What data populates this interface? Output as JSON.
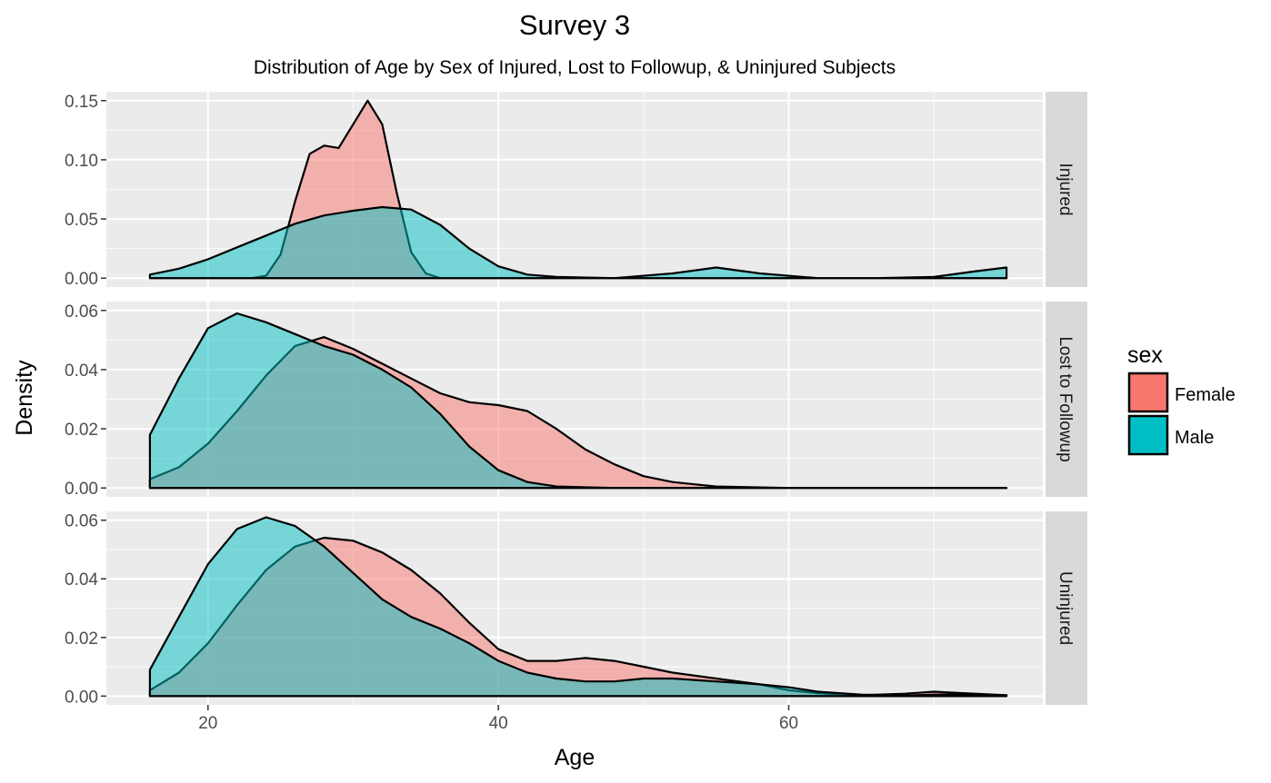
{
  "chart_data": {
    "type": "area",
    "title": "Survey 3",
    "subtitle": "Distribution of Age by Sex of Injured, Lost to Followup, & Uninjured Subjects",
    "xlabel": "Age",
    "ylabel": "Density",
    "xlim": [
      13,
      77.5
    ],
    "x_ticks": [
      20,
      40,
      60
    ],
    "grid": true,
    "legend": {
      "title": "sex",
      "position": "right",
      "entries": [
        {
          "label": "Female",
          "color": "#F8766D"
        },
        {
          "label": "Male",
          "color": "#00BFC4"
        }
      ]
    },
    "fill_alpha": 0.5,
    "panels": [
      {
        "label": "Injured",
        "ylim": [
          -0.0075,
          0.1575
        ],
        "y_ticks": [
          0,
          0.05,
          0.1,
          0.15
        ],
        "y_tick_labels": [
          "0.00",
          "0.05",
          "0.10",
          "0.15"
        ],
        "series": [
          {
            "name": "Female",
            "x": [
              16,
              20,
              23,
              24,
              25,
              26,
              27,
              28,
              29,
              30,
              31,
              32,
              33,
              34,
              35,
              36,
              40,
              50,
              60,
              70,
              75
            ],
            "values": [
              0,
              0,
              0,
              0.002,
              0.02,
              0.065,
              0.105,
              0.112,
              0.11,
              0.13,
              0.15,
              0.13,
              0.072,
              0.022,
              0.004,
              0,
              0,
              0,
              0,
              0,
              0
            ]
          },
          {
            "name": "Male",
            "x": [
              16,
              18,
              20,
              22,
              24,
              26,
              28,
              30,
              32,
              34,
              36,
              38,
              40,
              42,
              44,
              48,
              52,
              55,
              58,
              62,
              66,
              70,
              73,
              75
            ],
            "values": [
              0.003,
              0.008,
              0.016,
              0.026,
              0.036,
              0.046,
              0.053,
              0.057,
              0.06,
              0.058,
              0.045,
              0.025,
              0.01,
              0.003,
              0.001,
              0,
              0.004,
              0.009,
              0.004,
              0,
              0,
              0.001,
              0.006,
              0.009
            ]
          }
        ]
      },
      {
        "label": "Lost to Followup",
        "ylim": [
          -0.003,
          0.063
        ],
        "y_ticks": [
          0,
          0.02,
          0.04,
          0.06
        ],
        "y_tick_labels": [
          "0.00",
          "0.02",
          "0.04",
          "0.06"
        ],
        "series": [
          {
            "name": "Female",
            "x": [
              16,
              18,
              20,
              22,
              24,
              26,
              28,
              30,
              32,
              34,
              36,
              38,
              40,
              42,
              44,
              46,
              48,
              50,
              52,
              55,
              60,
              65,
              75
            ],
            "values": [
              0.003,
              0.007,
              0.015,
              0.026,
              0.038,
              0.048,
              0.051,
              0.047,
              0.042,
              0.037,
              0.032,
              0.029,
              0.028,
              0.026,
              0.02,
              0.013,
              0.008,
              0.004,
              0.002,
              0.0005,
              0,
              0,
              0
            ]
          },
          {
            "name": "Male",
            "x": [
              16,
              18,
              20,
              22,
              24,
              26,
              28,
              30,
              32,
              34,
              36,
              38,
              40,
              42,
              44,
              48,
              55,
              65,
              75
            ],
            "values": [
              0.018,
              0.037,
              0.054,
              0.059,
              0.056,
              0.052,
              0.048,
              0.045,
              0.04,
              0.034,
              0.025,
              0.014,
              0.006,
              0.002,
              0.0005,
              0,
              0,
              0,
              0
            ]
          }
        ]
      },
      {
        "label": "Uninjured",
        "ylim": [
          -0.003,
          0.063
        ],
        "y_ticks": [
          0,
          0.02,
          0.04,
          0.06
        ],
        "y_tick_labels": [
          "0.00",
          "0.02",
          "0.04",
          "0.06"
        ],
        "series": [
          {
            "name": "Female",
            "x": [
              16,
              18,
              20,
              22,
              24,
              26,
              28,
              30,
              32,
              34,
              36,
              38,
              40,
              42,
              44,
              46,
              48,
              50,
              52,
              55,
              58,
              60,
              62,
              65,
              68,
              70,
              72,
              75
            ],
            "values": [
              0.002,
              0.008,
              0.018,
              0.031,
              0.043,
              0.051,
              0.054,
              0.053,
              0.049,
              0.043,
              0.035,
              0.025,
              0.016,
              0.012,
              0.012,
              0.013,
              0.012,
              0.01,
              0.008,
              0.006,
              0.004,
              0.002,
              0.001,
              0.0003,
              0.0008,
              0.0015,
              0.001,
              0.0003
            ]
          },
          {
            "name": "Male",
            "x": [
              16,
              18,
              20,
              22,
              24,
              26,
              28,
              30,
              32,
              34,
              36,
              38,
              40,
              42,
              44,
              46,
              48,
              50,
              52,
              55,
              58,
              60,
              62,
              65,
              68,
              70,
              72,
              75
            ],
            "values": [
              0.009,
              0.027,
              0.045,
              0.057,
              0.061,
              0.058,
              0.051,
              0.042,
              0.033,
              0.027,
              0.023,
              0.018,
              0.012,
              0.008,
              0.006,
              0.005,
              0.005,
              0.006,
              0.006,
              0.005,
              0.004,
              0.003,
              0.0015,
              0.0005,
              0.0002,
              0.0005,
              0.0006,
              0.0003
            ]
          }
        ]
      }
    ]
  }
}
